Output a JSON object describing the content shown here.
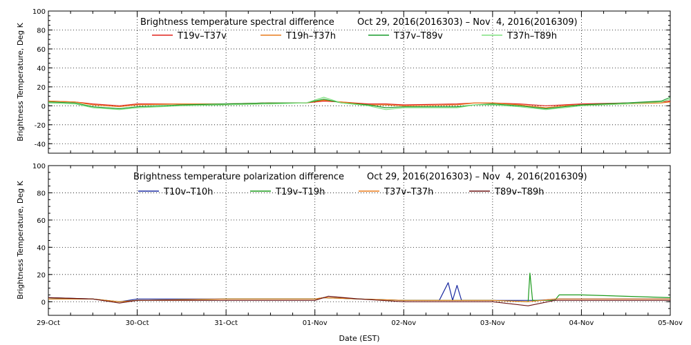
{
  "chart_data": [
    {
      "type": "line",
      "title": "Brightness temperature spectral difference",
      "date_range": "Oct 29, 2016(2016303) – Nov  4, 2016(2016309)",
      "ylabel": "Brightness Temperature, Deg K",
      "ylim": [
        -50,
        100
      ],
      "yticks": [
        -40,
        -20,
        0,
        20,
        40,
        60,
        80,
        100
      ],
      "grid": true,
      "legend_position": "top",
      "series": [
        {
          "name": "T19v–T37v",
          "color": "#e0201a",
          "x": [
            0,
            0.3,
            0.5,
            0.8,
            1.0,
            1.5,
            2.0,
            2.5,
            2.9,
            3.1,
            3.3,
            3.6,
            3.8,
            4.0,
            4.6,
            4.8,
            5.0,
            5.3,
            5.6,
            5.8,
            6.0,
            6.5,
            6.9,
            7.0
          ],
          "y": [
            5,
            4,
            2,
            0,
            2,
            2,
            2,
            3,
            3,
            5,
            4,
            2,
            2,
            1,
            2,
            3,
            3,
            2,
            0,
            1,
            2,
            3,
            4,
            5
          ]
        },
        {
          "name": "T19h–T37h",
          "color": "#e87a1a",
          "x": [
            0,
            0.3,
            0.5,
            0.8,
            1.0,
            1.5,
            2.0,
            2.5,
            2.9,
            3.1,
            3.3,
            3.6,
            3.8,
            4.0,
            4.6,
            4.8,
            5.0,
            5.3,
            5.6,
            5.8,
            6.0,
            6.5,
            6.9,
            7.0
          ],
          "y": [
            5,
            4,
            1,
            -1,
            1,
            2,
            2,
            3,
            3,
            6,
            4,
            1,
            1,
            0,
            1,
            3,
            3,
            1,
            -2,
            0,
            1,
            2,
            3,
            4
          ]
        },
        {
          "name": "T37v–T89v",
          "color": "#159a2a",
          "x": [
            0,
            0.3,
            0.5,
            0.8,
            1.0,
            1.5,
            2.0,
            2.5,
            2.9,
            3.1,
            3.3,
            3.6,
            3.8,
            4.0,
            4.6,
            4.8,
            5.0,
            5.3,
            5.6,
            5.8,
            6.0,
            6.5,
            6.9,
            7.0
          ],
          "y": [
            4,
            3,
            -1,
            -3,
            -1,
            1,
            2,
            3,
            3,
            7,
            3,
            1,
            -2,
            -1,
            -1,
            1,
            2,
            0,
            -3,
            -1,
            1,
            3,
            5,
            9
          ]
        },
        {
          "name": "T37h–T89h",
          "color": "#7ee07e",
          "x": [
            0,
            0.3,
            0.5,
            0.8,
            1.0,
            1.5,
            2.0,
            2.5,
            2.9,
            3.1,
            3.3,
            3.6,
            3.8,
            4.0,
            4.6,
            4.8,
            5.0,
            5.3,
            5.6,
            5.8,
            6.0,
            6.5,
            6.9,
            7.0
          ],
          "y": [
            3,
            2,
            -2,
            -4,
            -2,
            0,
            1,
            2,
            3,
            9,
            3,
            0,
            -4,
            -2,
            -2,
            1,
            1,
            -1,
            -4,
            -2,
            0,
            2,
            4,
            7
          ]
        }
      ]
    },
    {
      "type": "line",
      "title": "Brightness temperature polarization difference",
      "date_range": "Oct 29, 2016(2016303) – Nov  4, 2016(2016309)",
      "xlabel": "Date (EST)",
      "ylabel": "Brightness Temperature, Deg K",
      "ylim": [
        -10,
        100
      ],
      "yticks": [
        0,
        20,
        40,
        60,
        80,
        100
      ],
      "xticks": [
        "29-Oct",
        "30-Oct",
        "31-Oct",
        "01-Nov",
        "02-Nov",
        "03-Nov",
        "04-Nov",
        "05-Nov"
      ],
      "grid": true,
      "legend_position": "top",
      "series": [
        {
          "name": "T10v–T10h",
          "color": "#1a2aa0",
          "x": [
            0,
            0.5,
            0.8,
            1.0,
            2.0,
            3.0,
            3.1,
            3.5,
            4.0,
            4.4,
            4.5,
            4.55,
            4.6,
            4.65,
            4.7,
            5.0,
            5.5,
            5.75,
            6.0,
            7.0
          ],
          "y": [
            3,
            2,
            0,
            2,
            2,
            2,
            3,
            2,
            1,
            1,
            14,
            1,
            12,
            1,
            1,
            1,
            1,
            2,
            2,
            2
          ]
        },
        {
          "name": "T19v–T19h",
          "color": "#1a9a1a",
          "x": [
            0,
            0.5,
            0.8,
            1.0,
            2.0,
            3.0,
            3.1,
            3.5,
            4.0,
            4.7,
            5.0,
            5.4,
            5.42,
            5.45,
            5.7,
            5.75,
            6.0,
            6.5,
            7.0
          ],
          "y": [
            2,
            2,
            0,
            1,
            2,
            2,
            3,
            2,
            1,
            1,
            1,
            0,
            21,
            1,
            1,
            5,
            5,
            4,
            3
          ]
        },
        {
          "name": "T37v–T37h",
          "color": "#e87a1a",
          "x": [
            0,
            0.5,
            0.8,
            1.0,
            2.0,
            3.0,
            3.1,
            3.5,
            4.0,
            5.0,
            5.4,
            5.7,
            6.0,
            7.0
          ],
          "y": [
            2,
            2,
            0,
            1,
            2,
            2,
            3,
            2,
            1,
            1,
            0,
            2,
            2,
            2
          ]
        },
        {
          "name": "T89v–T89h",
          "color": "#6a1010",
          "x": [
            0,
            0.5,
            0.8,
            1.0,
            2.0,
            3.0,
            3.15,
            3.5,
            4.0,
            5.0,
            5.4,
            5.7,
            6.0,
            7.0
          ],
          "y": [
            3,
            2,
            -1,
            1,
            1,
            1,
            4,
            2,
            0,
            0,
            -3,
            1,
            1,
            1
          ]
        }
      ]
    }
  ]
}
